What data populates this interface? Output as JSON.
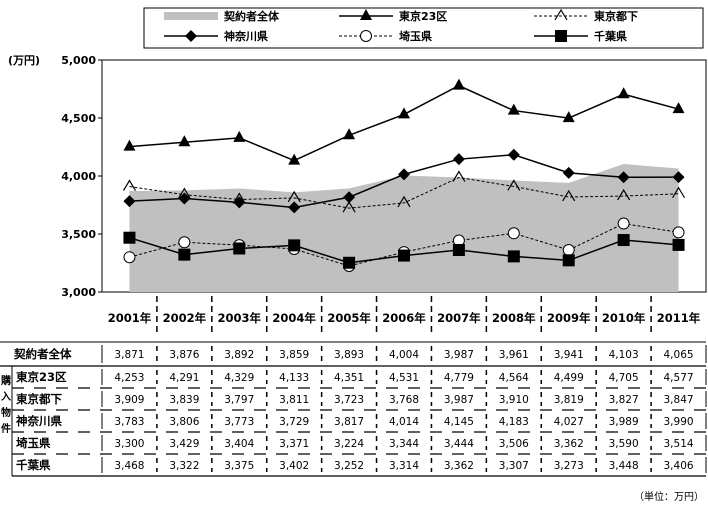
{
  "chart_data": {
    "type": "line",
    "ylabel_unit": "(万円)",
    "ylim": [
      3000,
      5000
    ],
    "yticks": [
      "3,000",
      "3,500",
      "4,000",
      "4,500",
      "5,000"
    ],
    "categories": [
      "2001年",
      "2002年",
      "2003年",
      "2004年",
      "2005年",
      "2006年",
      "2007年",
      "2008年",
      "2009年",
      "2010年",
      "2011年"
    ],
    "area_series": {
      "name": "契約者全体",
      "color": "#c0c0c0",
      "values": [
        3871,
        3876,
        3892,
        3859,
        3893,
        4004,
        3987,
        3961,
        3941,
        4103,
        4065
      ],
      "labels": [
        "3,871",
        "3,876",
        "3,892",
        "3,859",
        "3,893",
        "4,004",
        "3,987",
        "3,961",
        "3,941",
        "4,103",
        "4,065"
      ]
    },
    "series": [
      {
        "name": "東京23区",
        "marker": "triangle",
        "line": "solid",
        "values": [
          4253,
          4291,
          4329,
          4133,
          4351,
          4531,
          4779,
          4564,
          4499,
          4705,
          4577
        ],
        "labels": [
          "4,253",
          "4,291",
          "4,329",
          "4,133",
          "4,351",
          "4,531",
          "4,779",
          "4,564",
          "4,499",
          "4,705",
          "4,577"
        ]
      },
      {
        "name": "東京都下",
        "marker": "open-arrow",
        "line": "dashed",
        "values": [
          3909,
          3839,
          3797,
          3811,
          3723,
          3768,
          3987,
          3910,
          3819,
          3827,
          3847
        ],
        "labels": [
          "3,909",
          "3,839",
          "3,797",
          "3,811",
          "3,723",
          "3,768",
          "3,987",
          "3,910",
          "3,819",
          "3,827",
          "3,847"
        ]
      },
      {
        "name": "神奈川県",
        "marker": "diamond",
        "line": "solid",
        "values": [
          3783,
          3806,
          3773,
          3729,
          3817,
          4014,
          4145,
          4183,
          4027,
          3989,
          3990
        ],
        "labels": [
          "3,783",
          "3,806",
          "3,773",
          "3,729",
          "3,817",
          "4,014",
          "4,145",
          "4,183",
          "4,027",
          "3,989",
          "3,990"
        ]
      },
      {
        "name": "埼玉県",
        "marker": "circle-open",
        "line": "dashed",
        "values": [
          3300,
          3429,
          3404,
          3371,
          3224,
          3344,
          3444,
          3506,
          3362,
          3590,
          3514
        ],
        "labels": [
          "3,300",
          "3,429",
          "3,404",
          "3,371",
          "3,224",
          "3,344",
          "3,444",
          "3,506",
          "3,362",
          "3,590",
          "3,514"
        ]
      },
      {
        "name": "千葉県",
        "marker": "square",
        "line": "solid",
        "values": [
          3468,
          3322,
          3375,
          3402,
          3252,
          3314,
          3362,
          3307,
          3273,
          3448,
          3406
        ],
        "labels": [
          "3,468",
          "3,322",
          "3,375",
          "3,402",
          "3,252",
          "3,314",
          "3,362",
          "3,307",
          "3,273",
          "3,448",
          "3,406"
        ]
      }
    ],
    "group_label": "購入物件",
    "unit_note": "（単位：万円）",
    "legend_position": "top",
    "grid": false
  }
}
